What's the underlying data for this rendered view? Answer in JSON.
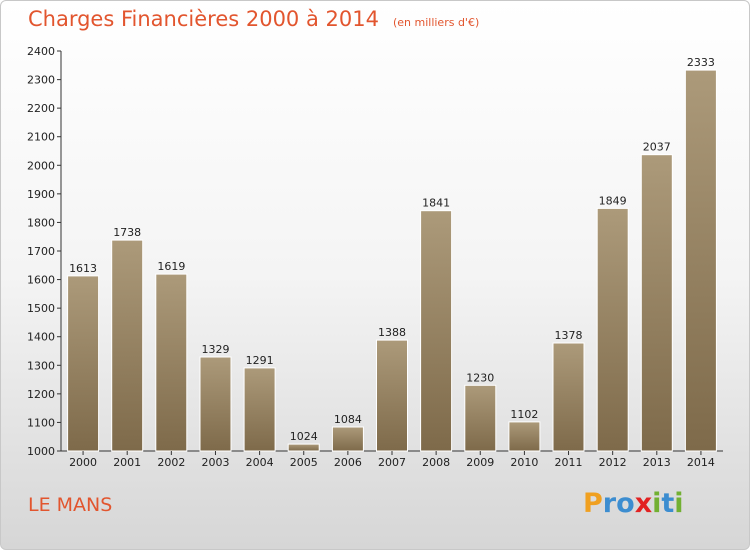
{
  "title": "Charges Financières 2000 à 2014",
  "subtitle": "(en milliers d'€)",
  "city": "LE MANS",
  "logo": {
    "letters": [
      "P",
      "r",
      "o",
      "x",
      "i",
      "t",
      "i"
    ],
    "colors": [
      "#f0a020",
      "#3c8dd0",
      "#3c8dd0",
      "#e22222",
      "#72b032",
      "#3c8dd0",
      "#72b032"
    ]
  },
  "colors": {
    "bar_top": "#ac9a7a",
    "bar_bottom": "#7e6a4a",
    "text_accent": "#e2552e"
  },
  "chart_data": {
    "type": "bar",
    "categories": [
      "2000",
      "2001",
      "2002",
      "2003",
      "2004",
      "2005",
      "2006",
      "2007",
      "2008",
      "2009",
      "2010",
      "2011",
      "2012",
      "2013",
      "2014"
    ],
    "values": [
      1613,
      1738,
      1619,
      1329,
      1291,
      1024,
      1084,
      1388,
      1841,
      1230,
      1102,
      1378,
      1849,
      2037,
      2333
    ],
    "yticks": [
      1000,
      1100,
      1200,
      1300,
      1400,
      1500,
      1600,
      1700,
      1800,
      1900,
      2000,
      2100,
      2200,
      2300,
      2400
    ],
    "ylim": [
      1000,
      2400
    ],
    "title": "Charges Financières 2000 à 2014",
    "xlabel": "",
    "ylabel": "",
    "grid": false,
    "legend": "none"
  }
}
